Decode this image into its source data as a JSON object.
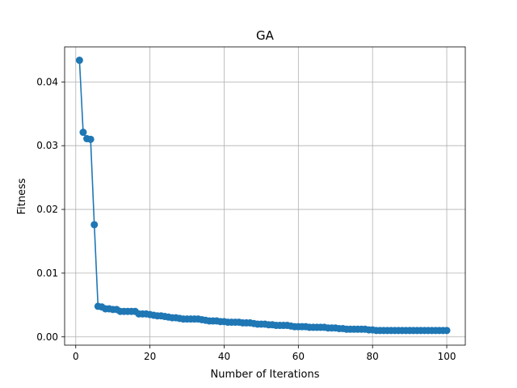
{
  "chart_data": {
    "type": "line",
    "title": "GA",
    "xlabel": "Number of Iterations",
    "ylabel": "Fitness",
    "xlim": [
      -3,
      105
    ],
    "ylim": [
      -0.0013,
      0.0455
    ],
    "xticks": [
      0,
      20,
      40,
      60,
      80,
      100
    ],
    "yticks": [
      0.0,
      0.01,
      0.02,
      0.03,
      0.04
    ],
    "ytick_labels": [
      "0.00",
      "0.01",
      "0.02",
      "0.03",
      "0.04"
    ],
    "grid": true,
    "marker": "circle",
    "color": "#1f77b4",
    "series": [
      {
        "x": [
          1,
          2,
          3,
          4,
          5,
          6,
          7,
          8,
          9,
          10,
          11,
          12,
          13,
          14,
          15,
          16,
          17,
          18,
          19,
          20,
          21,
          22,
          23,
          24,
          25,
          26,
          27,
          28,
          29,
          30,
          31,
          32,
          33,
          34,
          35,
          36,
          37,
          38,
          39,
          40,
          41,
          42,
          43,
          44,
          45,
          46,
          47,
          48,
          49,
          50,
          51,
          52,
          53,
          54,
          55,
          56,
          57,
          58,
          59,
          60,
          61,
          62,
          63,
          64,
          65,
          66,
          67,
          68,
          69,
          70,
          71,
          72,
          73,
          74,
          75,
          76,
          77,
          78,
          79,
          80,
          81,
          82,
          83,
          84,
          85,
          86,
          87,
          88,
          89,
          90,
          91,
          92,
          93,
          94,
          95,
          96,
          97,
          98,
          99,
          100
        ],
        "values": [
          0.0434,
          0.0321,
          0.0311,
          0.031,
          0.0176,
          0.0048,
          0.0047,
          0.0044,
          0.0044,
          0.0043,
          0.0043,
          0.004,
          0.004,
          0.004,
          0.004,
          0.004,
          0.0036,
          0.0036,
          0.0036,
          0.0035,
          0.0034,
          0.0033,
          0.0033,
          0.0032,
          0.0031,
          0.003,
          0.003,
          0.0029,
          0.0028,
          0.0028,
          0.0028,
          0.0028,
          0.0028,
          0.0027,
          0.0026,
          0.0025,
          0.0025,
          0.0025,
          0.0024,
          0.0024,
          0.0023,
          0.0023,
          0.0023,
          0.0023,
          0.0022,
          0.0022,
          0.0022,
          0.0021,
          0.002,
          0.002,
          0.002,
          0.0019,
          0.0019,
          0.0018,
          0.0018,
          0.0018,
          0.0018,
          0.0017,
          0.0016,
          0.0016,
          0.0016,
          0.0016,
          0.0015,
          0.0015,
          0.0015,
          0.0015,
          0.0015,
          0.0014,
          0.0014,
          0.0014,
          0.0013,
          0.0013,
          0.0012,
          0.0012,
          0.0012,
          0.0012,
          0.0012,
          0.0012,
          0.0011,
          0.0011,
          0.001,
          0.001,
          0.001,
          0.001,
          0.001,
          0.001,
          0.001,
          0.001,
          0.001,
          0.001,
          0.001,
          0.001,
          0.001,
          0.001,
          0.001,
          0.001,
          0.001,
          0.001,
          0.001,
          0.001
        ]
      }
    ]
  }
}
